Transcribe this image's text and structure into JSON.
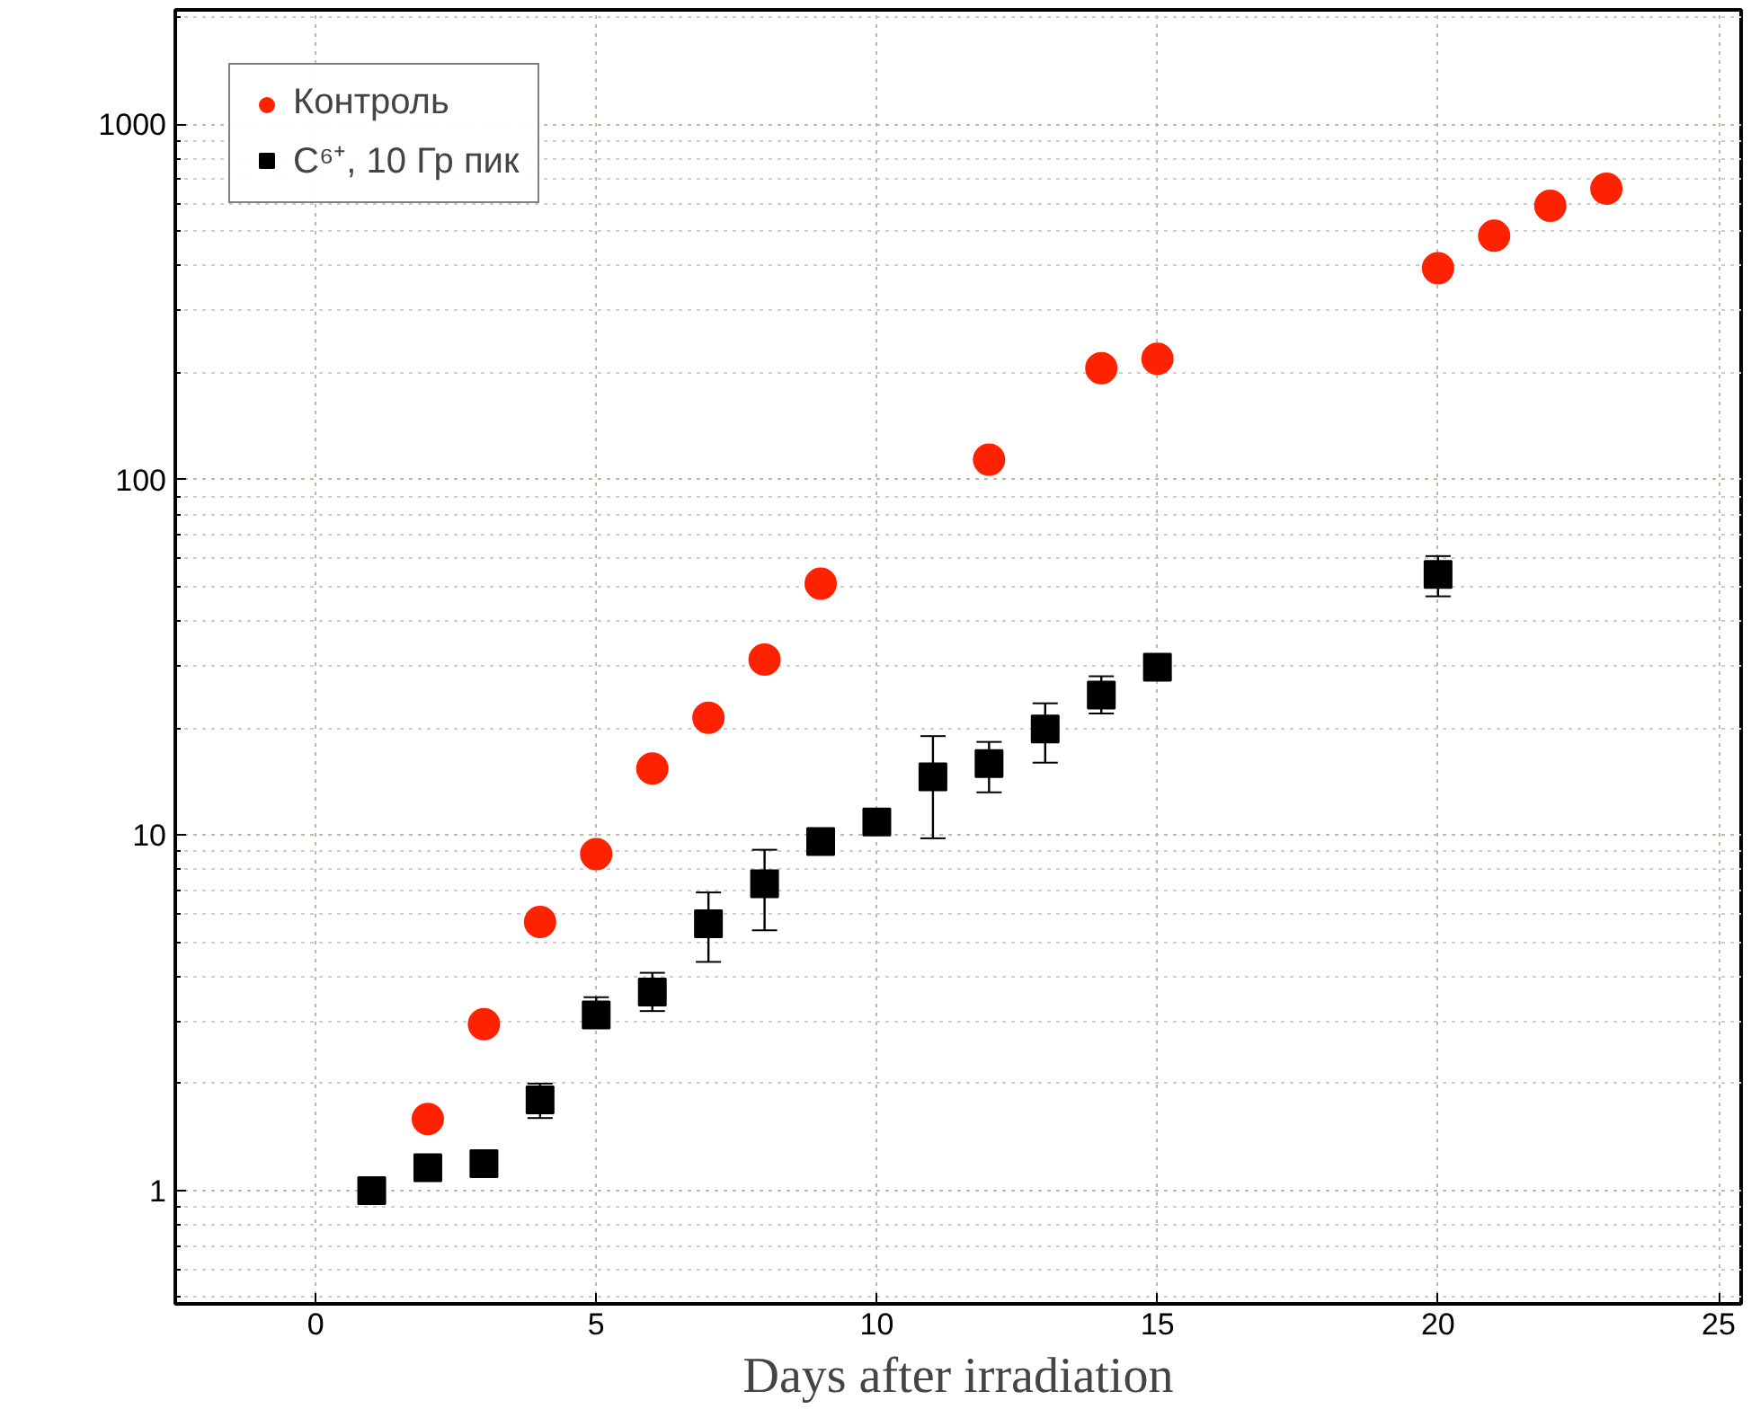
{
  "chart_data": {
    "type": "scatter",
    "xlabel": "Days after irradiation",
    "log": "y",
    "grid": true,
    "legend": "top left",
    "xlim": [
      -2.5,
      25.4
    ],
    "xticks": [
      0,
      5,
      10,
      15,
      20,
      25
    ],
    "ylim": [
      0.48,
      2100
    ],
    "yticks": [
      1,
      10,
      100,
      1000
    ],
    "series": [
      {
        "name": "Контроль",
        "color": "#ff2200",
        "marker": "circle",
        "x": [
          2,
          3,
          4,
          5,
          6,
          7,
          8,
          9,
          12,
          14,
          15,
          20,
          21,
          22,
          23
        ],
        "values": [
          1.59,
          2.94,
          5.7,
          8.85,
          15.4,
          21.4,
          31.2,
          51,
          114,
          206,
          219,
          394,
          486,
          590,
          659
        ]
      },
      {
        "name": "C⁶⁺, 10 Гр пик",
        "color": "#000000",
        "marker": "square",
        "x": [
          1,
          2,
          3,
          4,
          5,
          6,
          7,
          8,
          9,
          10,
          11,
          12,
          13,
          14,
          15,
          20
        ],
        "values": [
          1.0,
          1.16,
          1.19,
          1.8,
          3.12,
          3.62,
          5.63,
          7.3,
          9.6,
          10.9,
          14.6,
          15.9,
          19.9,
          24.8,
          29.7,
          54.2
        ],
        "errors": [
          null,
          null,
          null,
          [
            1.6,
            2.0
          ],
          [
            2.9,
            3.5
          ],
          [
            3.2,
            4.1
          ],
          [
            4.4,
            6.9
          ],
          [
            5.4,
            9.1
          ],
          null,
          null,
          [
            9.8,
            19
          ],
          [
            13.2,
            18.3
          ],
          [
            16,
            23.5
          ],
          [
            22,
            28
          ],
          null,
          [
            47,
            61
          ]
        ]
      }
    ]
  }
}
